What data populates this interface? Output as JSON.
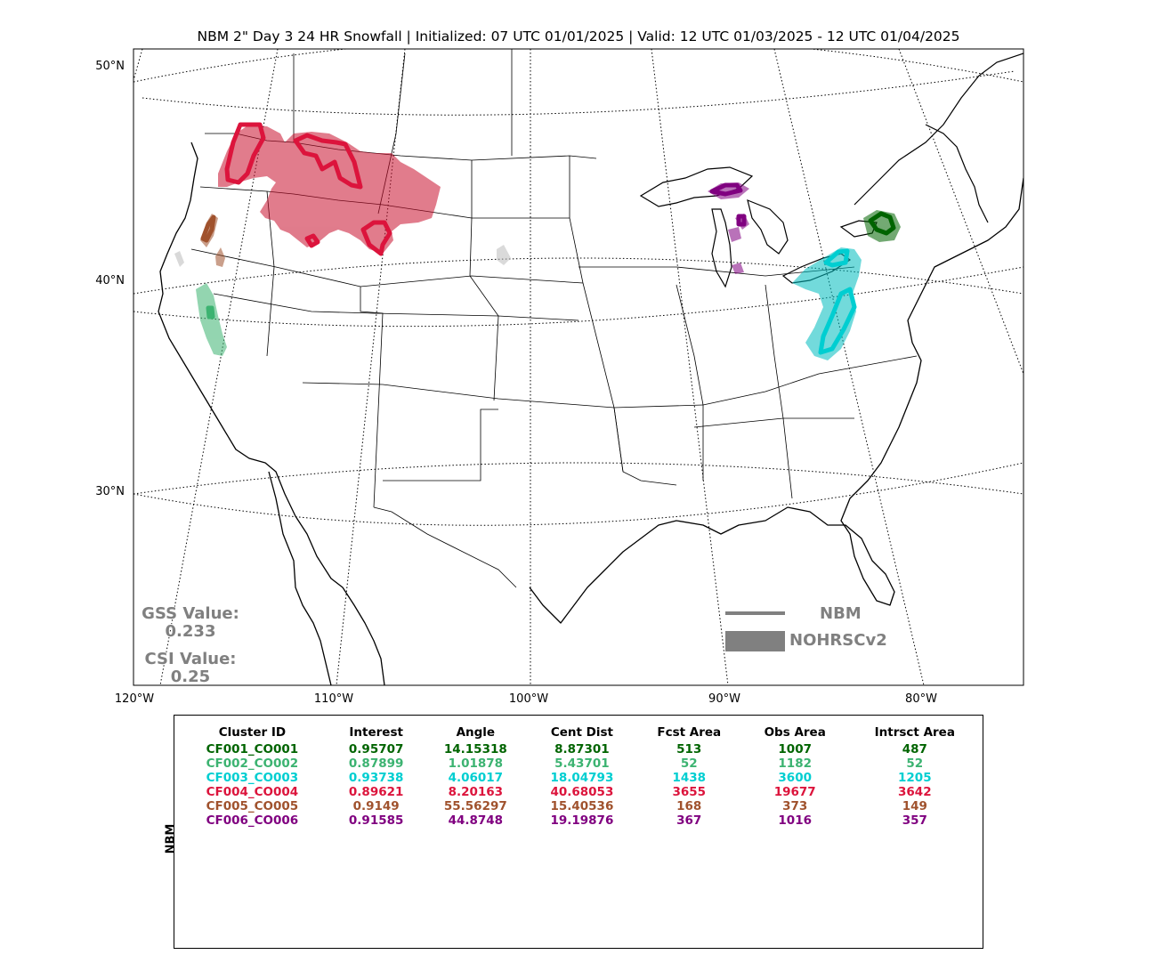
{
  "title": "NBM 2\" Day 3 24 HR Snowfall | Initialized: 07 UTC 01/01/2025 | Valid: 12 UTC 01/03/2025 - 12 UTC 01/04/2025",
  "map": {
    "lat_labels": [
      "50°N",
      "40°N",
      "30°N"
    ],
    "lon_labels": [
      "120°W",
      "110°W",
      "100°W",
      "90°W",
      "80°W"
    ]
  },
  "scores": {
    "gss_label": "GSS Value:",
    "gss_value": "0.233",
    "csi_label": "CSI Value:",
    "csi_value": "0.25"
  },
  "legend": {
    "forecast_label": "NBM",
    "observed_label": "NOHRSCv2",
    "color": "#808080"
  },
  "table": {
    "side_label": "NBM",
    "headers": [
      "Cluster ID",
      "Interest",
      "Angle",
      "Cent Dist",
      "Fcst Area",
      "Obs Area",
      "Intrsct Area"
    ],
    "rows": [
      {
        "color": "#006400",
        "cells": [
          "CF001_CO001",
          "0.95707",
          "14.15318",
          "8.87301",
          "513",
          "1007",
          "487"
        ]
      },
      {
        "color": "#3cb371",
        "cells": [
          "CF002_CO002",
          "0.87899",
          "1.01878",
          "5.43701",
          "52",
          "1182",
          "52"
        ]
      },
      {
        "color": "#00ced1",
        "cells": [
          "CF003_CO003",
          "0.93738",
          "4.06017",
          "18.04793",
          "1438",
          "3600",
          "1205"
        ]
      },
      {
        "color": "#dc143c",
        "cells": [
          "CF004_CO004",
          "0.89621",
          "8.20163",
          "40.68053",
          "3655",
          "19677",
          "3642"
        ]
      },
      {
        "color": "#a0522d",
        "cells": [
          "CF005_CO005",
          "0.9149",
          "55.56297",
          "15.40536",
          "168",
          "373",
          "149"
        ]
      },
      {
        "color": "#800080",
        "cells": [
          "CF006_CO006",
          "0.91585",
          "44.8748",
          "19.19876",
          "367",
          "1016",
          "357"
        ]
      }
    ]
  }
}
